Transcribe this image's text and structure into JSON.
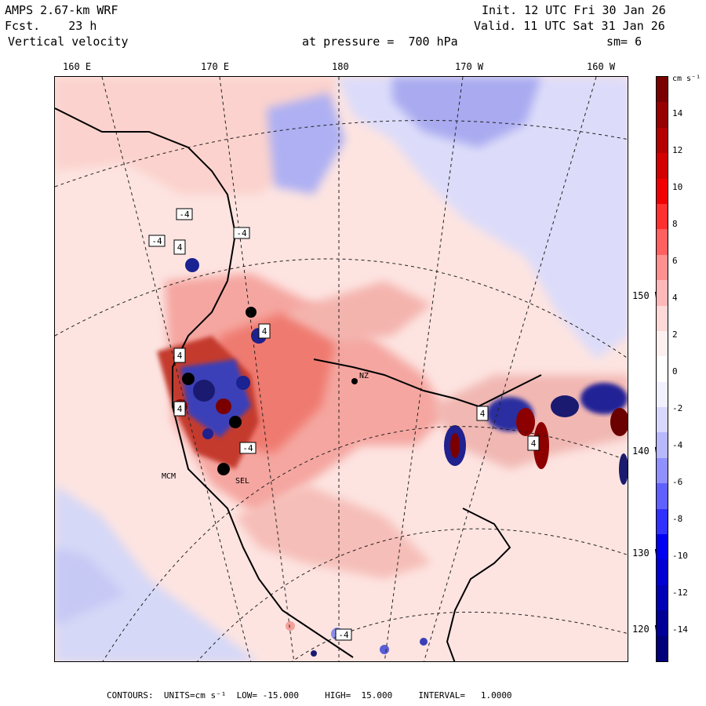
{
  "header": {
    "model": "AMPS 2.67-km WRF",
    "fcst": "Fcst.    23 h",
    "field": "Vertical velocity",
    "init": "Init. 12 UTC Fri 30 Jan 26",
    "valid": "Valid. 11 UTC Sat 31 Jan 26",
    "pressure": "at pressure =  700 hPa",
    "smooth": "sm= 6"
  },
  "longitude_labels": [
    "160 E",
    "170 E",
    "180",
    "170 W",
    "160 W"
  ],
  "latitude_labels": [
    "150 W",
    "140 W",
    "130 W",
    "120 W"
  ],
  "colorbar": {
    "units": "cm s⁻¹",
    "ticks": [
      "14",
      "12",
      "10",
      "8",
      "6",
      "4",
      "2",
      "0",
      "-2",
      "-4",
      "-6",
      "-8",
      "-10",
      "-12",
      "-14"
    ],
    "colors": [
      "#7a0000",
      "#960000",
      "#b40000",
      "#d20000",
      "#f00000",
      "#ff3030",
      "#ff6060",
      "#ff9090",
      "#ffb8b8",
      "#ffd8d8",
      "#fff0f0",
      "#ffffff",
      "#f0f0ff",
      "#d8d8ff",
      "#b8b8ff",
      "#9090ff",
      "#6060ff",
      "#3030ff",
      "#0000f0",
      "#0000d2",
      "#0000b4",
      "#000096",
      "#00007a"
    ]
  },
  "map_labels": {
    "contour_labels": [
      "-4",
      "-4",
      "-4",
      "4",
      "4",
      "4",
      "4",
      "-4",
      "4",
      "-4",
      "4"
    ],
    "stations": [
      "NZ",
      "MCM",
      "SEL"
    ]
  },
  "footer": {
    "text": "CONTOURS:  UNITS=cm s⁻¹  LOW= -15.000     HIGH=  15.000     INTERVAL=   1.0000"
  },
  "colors": {
    "positive": "#e34a3a",
    "negative": "#3344cc",
    "frame": "#000000"
  }
}
